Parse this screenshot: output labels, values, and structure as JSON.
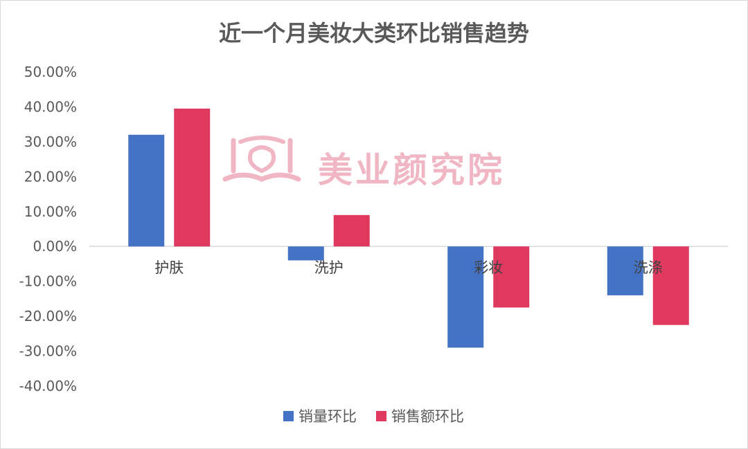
{
  "chart_data": {
    "type": "bar",
    "title": "近一个月美妆大类环比销售趋势",
    "categories": [
      "护肤",
      "洗护",
      "彩妆",
      "洗涤"
    ],
    "series": [
      {
        "name": "销量环比",
        "values": [
          0.32,
          -0.04,
          -0.29,
          -0.14
        ],
        "color": "#4472c4"
      },
      {
        "name": "销售额环比",
        "values": [
          0.395,
          0.09,
          -0.175,
          -0.225
        ],
        "color": "#e0395f"
      }
    ],
    "ylim": [
      -0.4,
      0.5
    ],
    "yticks": [
      "50.00%",
      "40.00%",
      "30.00%",
      "20.00%",
      "10.00%",
      "0.00%",
      "-10.00%",
      "-20.00%",
      "-30.00%",
      "-40.00%"
    ],
    "xlabel": "",
    "ylabel": "",
    "legend": "bottom",
    "grid": false
  },
  "watermark": {
    "text": "美业颜究院",
    "color": "#f0b6c4",
    "logo_icon": "book-logo-icon"
  }
}
